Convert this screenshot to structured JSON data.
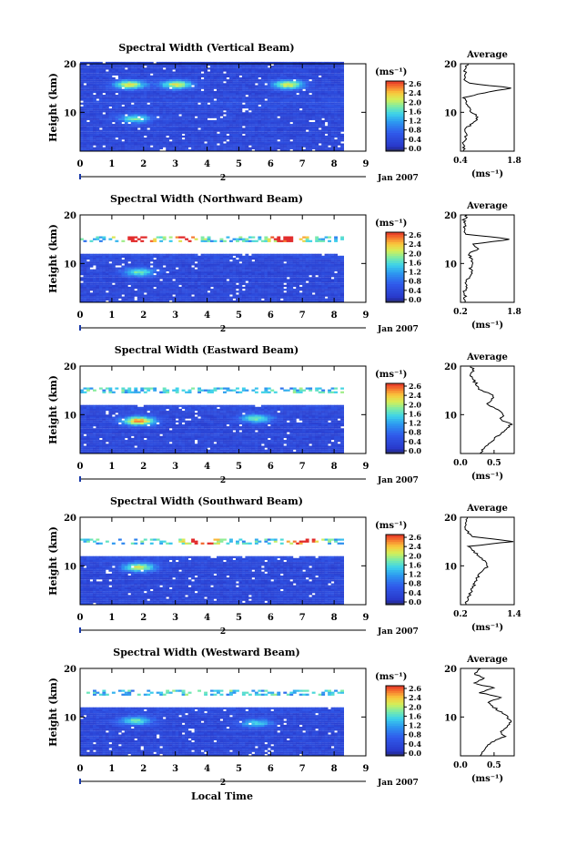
{
  "figure": {
    "xlabel": "Local Time",
    "date_label": "Jan 2007",
    "mid_marker": "2",
    "unit_label": "(ms⁻¹)",
    "colorbar_ticks": [
      "2.6",
      "2.4",
      "2.0",
      "1.6",
      "1.2",
      "0.8",
      "0.4",
      "0.0"
    ],
    "colors": {
      "low": "#2b3fd6",
      "mid": "#45b7e8",
      "high": "#e8452a",
      "background": "#ffffff"
    }
  },
  "chart_data": [
    {
      "type": "heatmap",
      "title": "Spectral Width (Vertical Beam)",
      "ylabel": "Height (km)",
      "xlim": [
        0,
        9
      ],
      "ylim": [
        2,
        20
      ],
      "xticks": [
        "0",
        "1",
        "2",
        "3",
        "4",
        "5",
        "6",
        "7",
        "8",
        "9"
      ],
      "yticks": [
        "20",
        "10"
      ],
      "data_x_extent": [
        0,
        8.2
      ],
      "data_top_km": 20,
      "hotspots": [
        {
          "x": 1.7,
          "y": 8.5,
          "v": 1.2
        },
        {
          "x": 3.0,
          "y": 15.5,
          "v": 1.6
        },
        {
          "x": 6.5,
          "y": 15.5,
          "v": 1.6
        },
        {
          "x": 1.5,
          "y": 15.5,
          "v": 1.6
        }
      ],
      "avg": {
        "title": "Average",
        "xlabel": "(ms⁻¹)",
        "xticks": [
          "0.4",
          "1.8"
        ],
        "xlim": [
          0.4,
          1.8
        ],
        "yticks": [
          "20",
          "10"
        ],
        "profile": [
          [
            0.45,
            2
          ],
          [
            0.5,
            3
          ],
          [
            0.48,
            4
          ],
          [
            0.55,
            5
          ],
          [
            0.5,
            6
          ],
          [
            0.6,
            7
          ],
          [
            0.75,
            8
          ],
          [
            0.85,
            9
          ],
          [
            0.7,
            10
          ],
          [
            0.6,
            11
          ],
          [
            0.55,
            12
          ],
          [
            0.5,
            13
          ],
          [
            1.0,
            14
          ],
          [
            1.75,
            15
          ],
          [
            0.6,
            16
          ],
          [
            0.5,
            17
          ],
          [
            0.55,
            18
          ],
          [
            0.5,
            19
          ],
          [
            0.6,
            20
          ]
        ]
      }
    },
    {
      "type": "heatmap",
      "title": "Spectral Width (Northward Beam)",
      "ylabel": "Height (km)",
      "xlim": [
        0,
        9
      ],
      "ylim": [
        2,
        20
      ],
      "xticks": [
        "0",
        "1",
        "2",
        "3",
        "4",
        "5",
        "6",
        "7",
        "8",
        "9"
      ],
      "yticks": [
        "20",
        "10"
      ],
      "data_x_extent": [
        0,
        8.2
      ],
      "data_top_km": 12,
      "hotspots": [
        {
          "x": 1.8,
          "y": 8.0,
          "v": 1.2
        },
        {
          "x": 1.8,
          "y": 15.0,
          "v": 2.4
        },
        {
          "x": 6.5,
          "y": 15.0,
          "v": 2.4
        },
        {
          "x": 3.3,
          "y": 15.0,
          "v": 1.6
        }
      ],
      "avg": {
        "title": "Average",
        "xlabel": "(ms⁻¹)",
        "xticks": [
          "0.2",
          "1.8"
        ],
        "xlim": [
          0.2,
          1.8
        ],
        "yticks": [
          "20",
          "10"
        ],
        "profile": [
          [
            0.3,
            2
          ],
          [
            0.35,
            3
          ],
          [
            0.3,
            4
          ],
          [
            0.4,
            5
          ],
          [
            0.35,
            6
          ],
          [
            0.45,
            7
          ],
          [
            0.55,
            8
          ],
          [
            0.5,
            9
          ],
          [
            0.6,
            10
          ],
          [
            0.5,
            11
          ],
          [
            0.45,
            12
          ],
          [
            0.7,
            13
          ],
          [
            0.6,
            14
          ],
          [
            1.7,
            15
          ],
          [
            0.4,
            16
          ],
          [
            0.3,
            17
          ],
          [
            0.35,
            18
          ],
          [
            0.3,
            19
          ],
          [
            0.4,
            20
          ]
        ]
      }
    },
    {
      "type": "heatmap",
      "title": "Spectral Width (Eastward Beam)",
      "ylabel": "Height (km)",
      "xlim": [
        0,
        9
      ],
      "ylim": [
        2,
        20
      ],
      "xticks": [
        "0",
        "1",
        "2",
        "3",
        "4",
        "5",
        "6",
        "7",
        "8",
        "9"
      ],
      "yticks": [
        "20",
        "10"
      ],
      "data_x_extent": [
        0,
        8.2
      ],
      "data_top_km": 12,
      "hotspots": [
        {
          "x": 1.8,
          "y": 8.5,
          "v": 2.0
        },
        {
          "x": 5.5,
          "y": 9.0,
          "v": 1.2
        }
      ],
      "avg": {
        "title": "Average",
        "xlabel": "(ms⁻¹)",
        "xticks": [
          "0.0",
          "0.5"
        ],
        "xlim": [
          0.0,
          0.8
        ],
        "yticks": [
          "20",
          "10"
        ],
        "profile": [
          [
            0.3,
            2
          ],
          [
            0.35,
            3
          ],
          [
            0.4,
            4
          ],
          [
            0.5,
            5
          ],
          [
            0.6,
            6
          ],
          [
            0.7,
            7
          ],
          [
            0.75,
            8
          ],
          [
            0.6,
            9
          ],
          [
            0.65,
            10
          ],
          [
            0.55,
            11
          ],
          [
            0.4,
            12
          ],
          [
            0.45,
            13
          ],
          [
            0.5,
            14
          ],
          [
            0.3,
            15
          ],
          [
            0.25,
            16
          ],
          [
            0.2,
            17
          ],
          [
            0.15,
            18
          ],
          [
            0.2,
            19
          ],
          [
            0.15,
            20
          ]
        ]
      }
    },
    {
      "type": "heatmap",
      "title": "Spectral Width (Southward Beam)",
      "ylabel": "Height (km)",
      "xlim": [
        0,
        9
      ],
      "ylim": [
        2,
        20
      ],
      "xticks": [
        "0",
        "1",
        "2",
        "3",
        "4",
        "5",
        "6",
        "7",
        "8",
        "9"
      ],
      "yticks": [
        "20",
        "10"
      ],
      "data_x_extent": [
        0,
        8.2
      ],
      "data_top_km": 12,
      "hotspots": [
        {
          "x": 1.8,
          "y": 9.5,
          "v": 1.6
        },
        {
          "x": 3.8,
          "y": 15.0,
          "v": 2.4
        },
        {
          "x": 7.0,
          "y": 15.0,
          "v": 2.0
        }
      ],
      "avg": {
        "title": "Average",
        "xlabel": "(ms⁻¹)",
        "xticks": [
          "0.2",
          "1.4"
        ],
        "xlim": [
          0.2,
          1.4
        ],
        "yticks": [
          "20",
          "10"
        ],
        "profile": [
          [
            0.3,
            2
          ],
          [
            0.35,
            3
          ],
          [
            0.4,
            4
          ],
          [
            0.45,
            5
          ],
          [
            0.5,
            6
          ],
          [
            0.55,
            7
          ],
          [
            0.6,
            8
          ],
          [
            0.7,
            9
          ],
          [
            0.8,
            10
          ],
          [
            0.75,
            11
          ],
          [
            0.6,
            12
          ],
          [
            0.5,
            13
          ],
          [
            0.4,
            14
          ],
          [
            1.35,
            15
          ],
          [
            0.5,
            16
          ],
          [
            0.35,
            17
          ],
          [
            0.3,
            18
          ],
          [
            0.3,
            19
          ],
          [
            0.35,
            20
          ]
        ]
      }
    },
    {
      "type": "heatmap",
      "title": "Spectral Width (Westward Beam)",
      "ylabel": "Height (km)",
      "xlim": [
        0,
        9
      ],
      "ylim": [
        2,
        20
      ],
      "xticks": [
        "0",
        "1",
        "2",
        "3",
        "4",
        "5",
        "6",
        "7",
        "8",
        "9"
      ],
      "yticks": [
        "20",
        "10"
      ],
      "data_x_extent": [
        0,
        8.2
      ],
      "data_top_km": 12,
      "hotspots": [
        {
          "x": 1.7,
          "y": 9.0,
          "v": 1.2
        },
        {
          "x": 5.5,
          "y": 8.5,
          "v": 1.0
        }
      ],
      "avg": {
        "title": "Average",
        "xlabel": "(ms⁻¹)",
        "xticks": [
          "0.0",
          "0.5"
        ],
        "xlim": [
          0.0,
          0.8
        ],
        "yticks": [
          "20",
          "10"
        ],
        "profile": [
          [
            0.3,
            2
          ],
          [
            0.35,
            3
          ],
          [
            0.4,
            4
          ],
          [
            0.5,
            5
          ],
          [
            0.65,
            6
          ],
          [
            0.6,
            7
          ],
          [
            0.7,
            8
          ],
          [
            0.75,
            9
          ],
          [
            0.7,
            10
          ],
          [
            0.6,
            11
          ],
          [
            0.5,
            12
          ],
          [
            0.4,
            13
          ],
          [
            0.6,
            14
          ],
          [
            0.3,
            15
          ],
          [
            0.5,
            16
          ],
          [
            0.2,
            17
          ],
          [
            0.35,
            18
          ],
          [
            0.2,
            19
          ],
          [
            0.3,
            20
          ]
        ]
      }
    }
  ]
}
